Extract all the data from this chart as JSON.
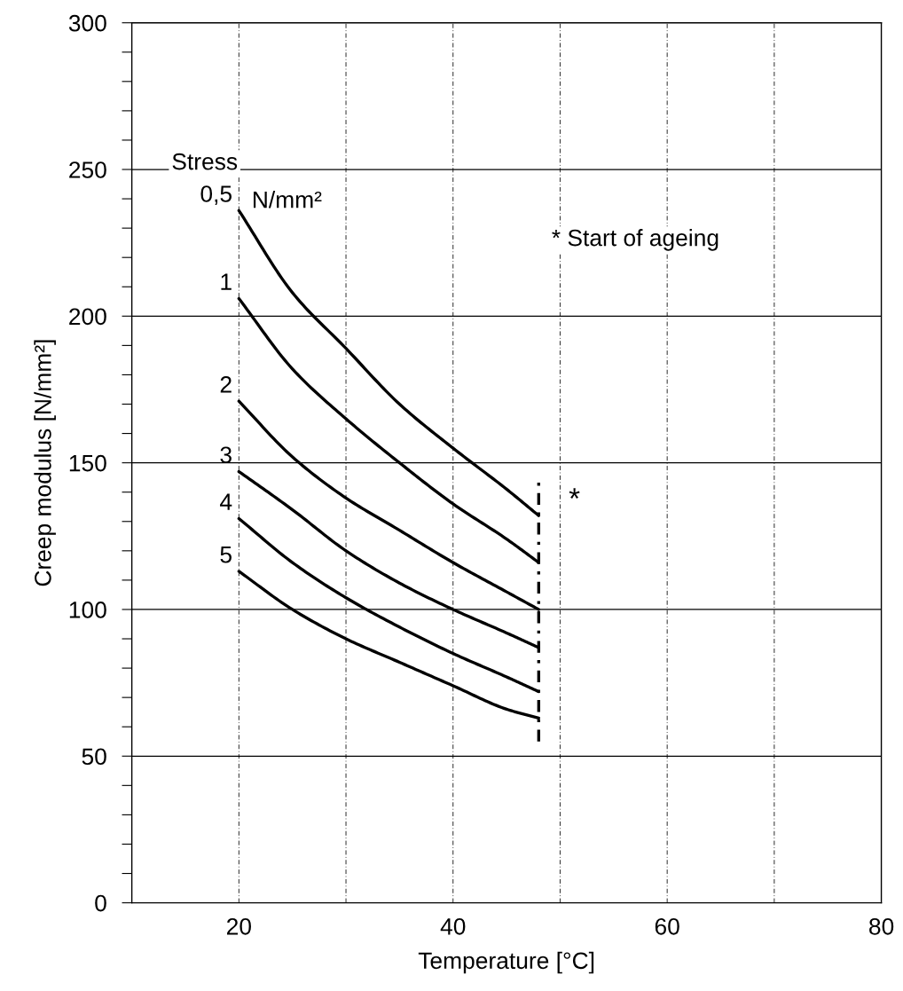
{
  "chart_data": {
    "type": "line",
    "xlabel": "Temperature [°C]",
    "ylabel": "Creep modulus [N/mm²]",
    "xlim": [
      10,
      80
    ],
    "xticks": [
      20,
      {
        "value": 30,
        "label": null
      },
      40,
      {
        "value": 50,
        "label": null
      },
      60,
      {
        "value": 70,
        "label": null
      },
      80
    ],
    "ylim": [
      0,
      300
    ],
    "yticks": [
      0,
      {
        "value": 10,
        "label": null
      },
      {
        "value": 20,
        "label": null
      },
      {
        "value": 30,
        "label": null
      },
      {
        "value": 40,
        "label": null
      },
      50,
      {
        "value": 60,
        "label": null
      },
      {
        "value": 70,
        "label": null
      },
      {
        "value": 80,
        "label": null
      },
      {
        "value": 90,
        "label": null
      },
      100,
      {
        "value": 110,
        "label": null
      },
      {
        "value": 120,
        "label": null
      },
      {
        "value": 130,
        "label": null
      },
      {
        "value": 140,
        "label": null
      },
      150,
      {
        "value": 160,
        "label": null
      },
      {
        "value": 170,
        "label": null
      },
      {
        "value": 180,
        "label": null
      },
      {
        "value": 190,
        "label": null
      },
      200,
      {
        "value": 210,
        "label": null
      },
      {
        "value": 220,
        "label": null
      },
      {
        "value": 230,
        "label": null
      },
      {
        "value": 240,
        "label": null
      },
      250,
      {
        "value": 260,
        "label": null
      },
      {
        "value": 270,
        "label": null
      },
      {
        "value": 280,
        "label": null
      },
      {
        "value": 290,
        "label": null
      },
      300
    ],
    "grid": true,
    "marker": "none",
    "legend": false,
    "x": [
      20,
      25,
      30,
      35,
      40,
      45,
      48
    ],
    "series": [
      {
        "name": "0,5",
        "color": "#000000",
        "values": [
          236,
          208,
          189,
          170,
          155,
          141,
          132
        ]
      },
      {
        "name": "1",
        "color": "#000000",
        "values": [
          206,
          182,
          165,
          150,
          136,
          124,
          116
        ]
      },
      {
        "name": "2",
        "color": "#000000",
        "values": [
          171,
          152,
          138,
          127,
          116,
          106,
          100
        ]
      },
      {
        "name": "3",
        "color": "#000000",
        "values": [
          147,
          134,
          120,
          109,
          100,
          92,
          87
        ]
      },
      {
        "name": "4",
        "color": "#000000",
        "values": [
          131,
          116,
          104,
          94,
          85,
          77,
          72
        ]
      },
      {
        "name": "5",
        "color": "#000000",
        "values": [
          113,
          100,
          90,
          82,
          74,
          66,
          63
        ]
      },
      {
        "x": [
          48,
          48
        ],
        "color": "#000000",
        "line_style": "dashed",
        "values": [
          55,
          144
        ]
      }
    ],
    "annotations": [
      "Stress",
      "N/mm²",
      "* Start of ageing",
      "*"
    ]
  }
}
